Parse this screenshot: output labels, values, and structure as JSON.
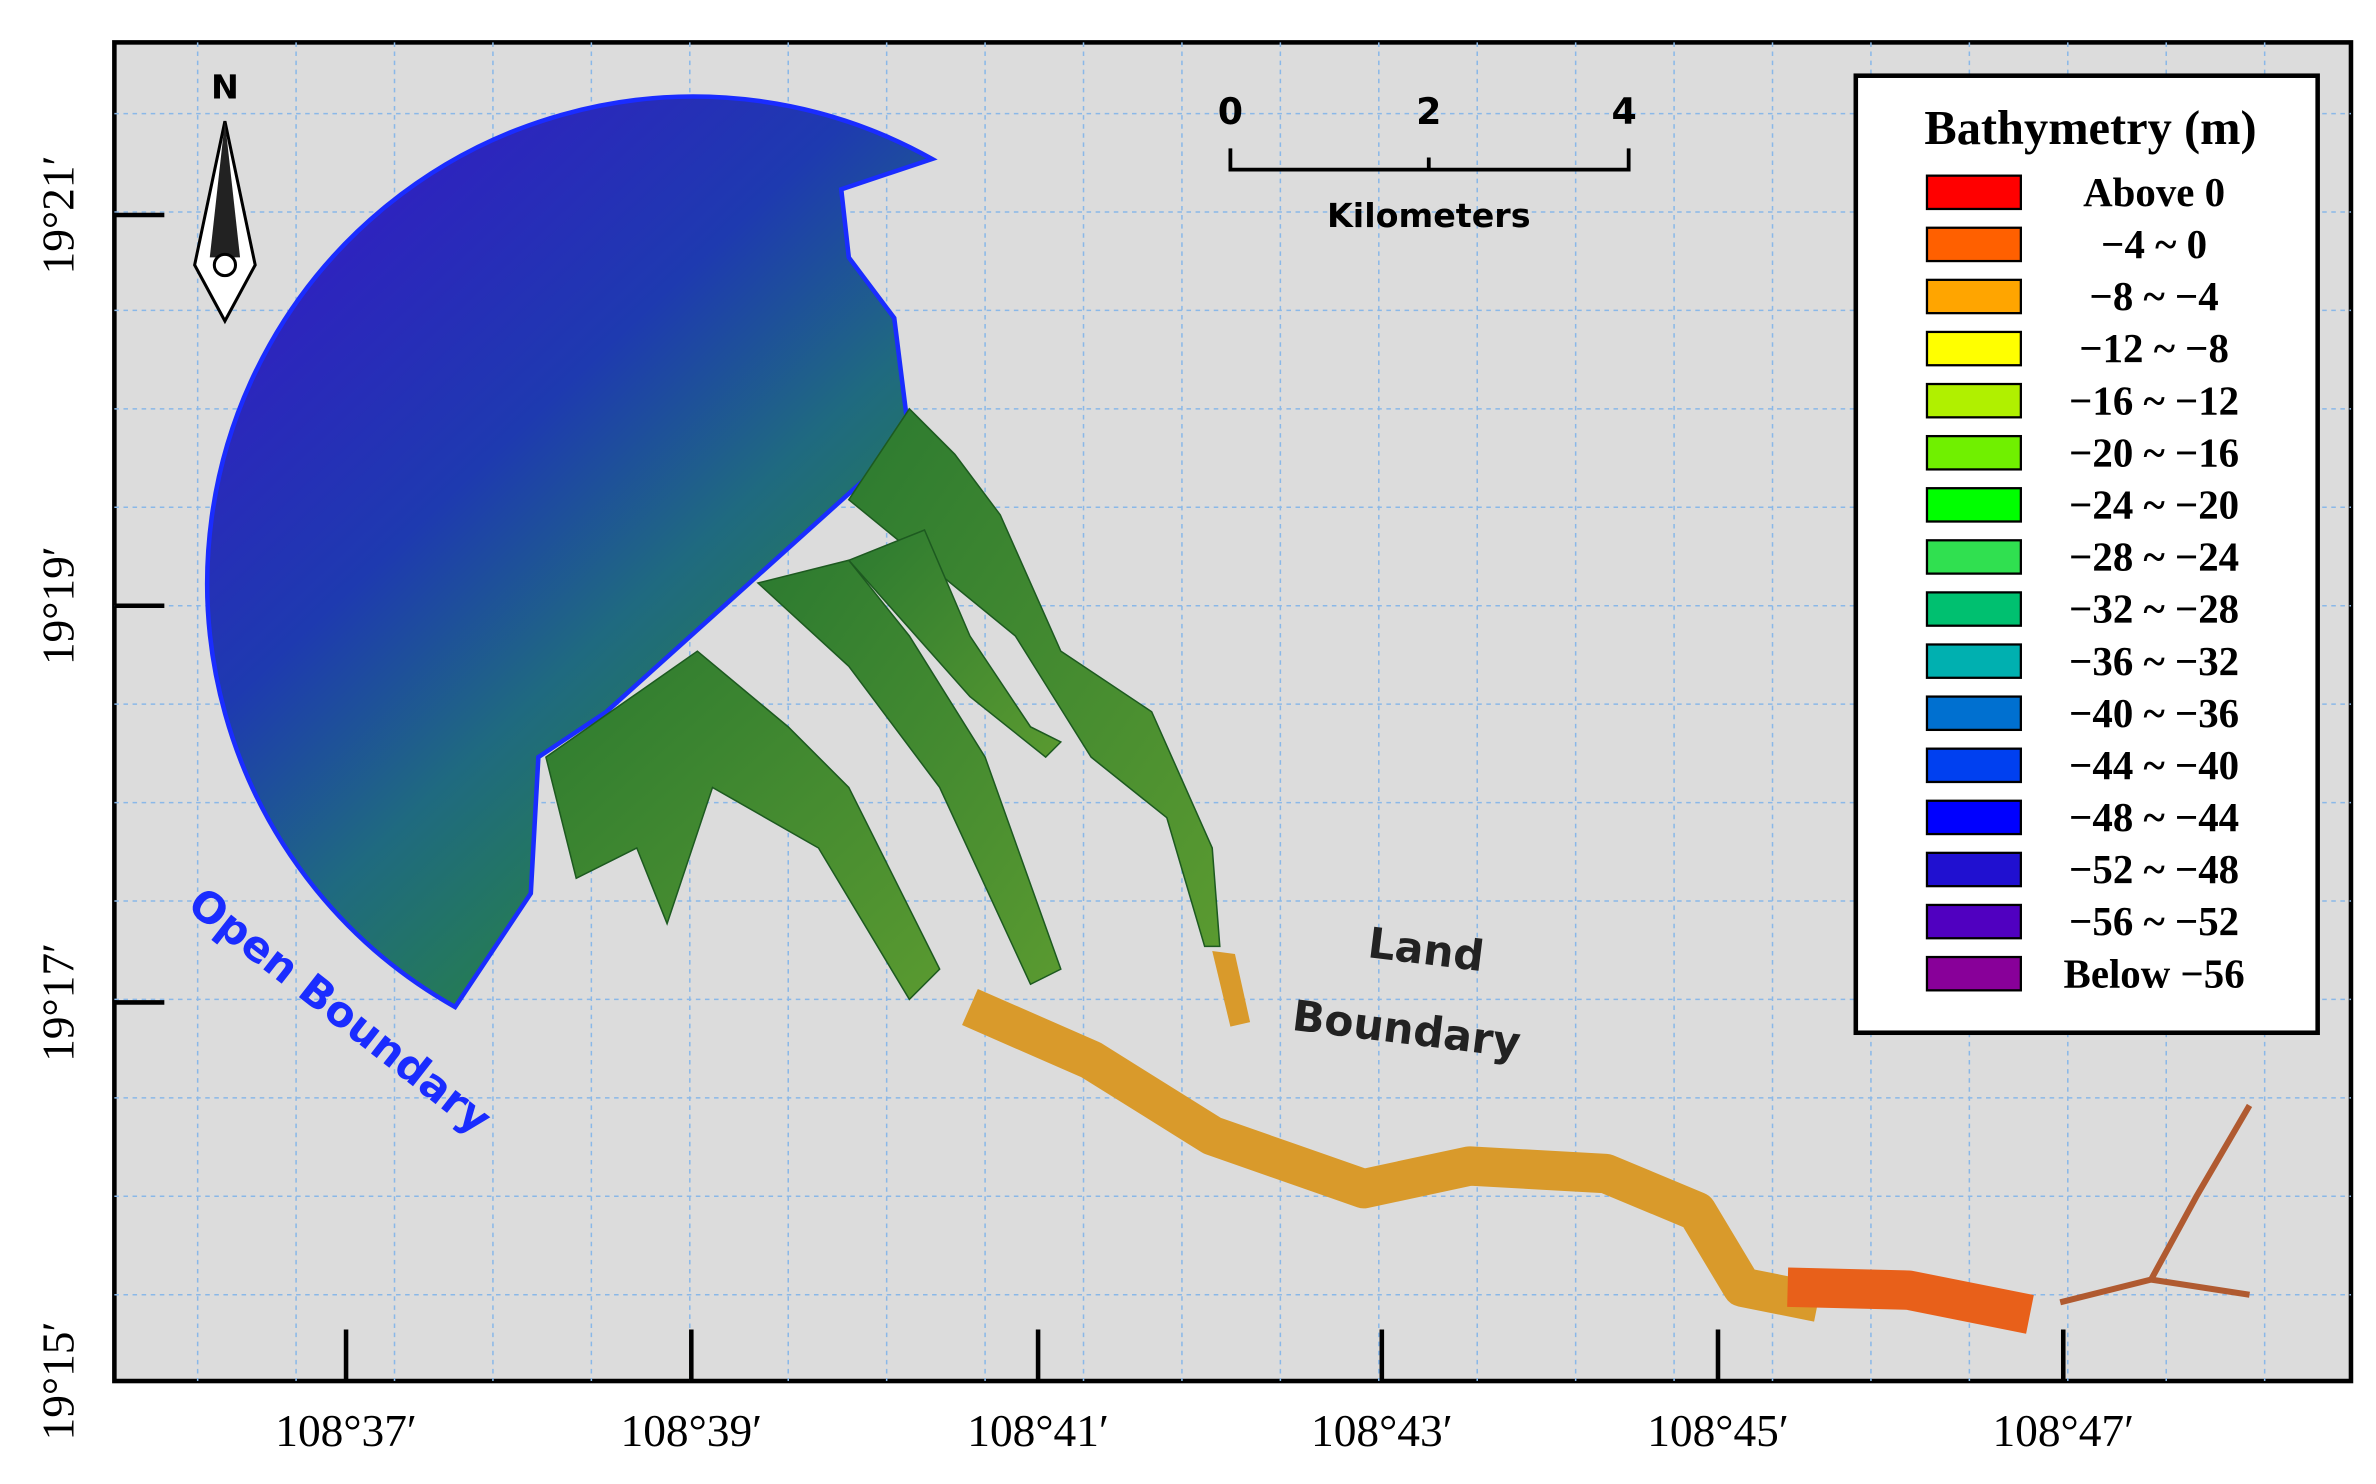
{
  "map": {
    "north_label": "N",
    "scale_bar": {
      "labels": [
        "0",
        "2",
        "4"
      ],
      "unit": "Kilometers"
    },
    "longitude_labels": [
      "108°37′",
      "108°39′",
      "108°41′",
      "108°43′",
      "108°45′",
      "108°47′"
    ],
    "latitude_labels": [
      "19°21′",
      "19°19′",
      "19°17′",
      "19°15′"
    ],
    "annotations": {
      "open_boundary": "Open Boundary",
      "land_boundary": [
        "Land",
        "Boundary"
      ]
    },
    "legend": {
      "title": "Bathymetry (m)",
      "entries": [
        {
          "label": "Above 0",
          "color": "#ff0000"
        },
        {
          "label": "−4 ~ 0",
          "color": "#ff6000"
        },
        {
          "label": "−8 ~ −4",
          "color": "#ffa500"
        },
        {
          "label": "−12 ~ −8",
          "color": "#ffff00"
        },
        {
          "label": "−16 ~ −12",
          "color": "#b0f000"
        },
        {
          "label": "−20 ~ −16",
          "color": "#70f000"
        },
        {
          "label": "−24 ~ −20",
          "color": "#00ff00"
        },
        {
          "label": "−28 ~ −24",
          "color": "#30e050"
        },
        {
          "label": "−32 ~ −28",
          "color": "#00c070"
        },
        {
          "label": "−36 ~ −32",
          "color": "#00b0b0"
        },
        {
          "label": "−40 ~ −36",
          "color": "#0070d0"
        },
        {
          "label": "−44 ~ −40",
          "color": "#0040f0"
        },
        {
          "label": "−48 ~ −44",
          "color": "#0000ff"
        },
        {
          "label": "−52 ~ −48",
          "color": "#2010d0"
        },
        {
          "label": "−56 ~ −52",
          "color": "#5000c0"
        },
        {
          "label": "Below −56",
          "color": "#880099"
        }
      ]
    }
  }
}
